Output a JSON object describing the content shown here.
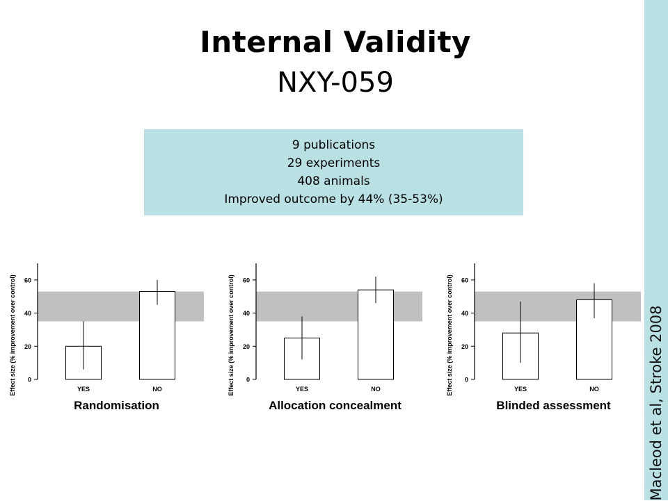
{
  "slide": {
    "title": "Internal Validity",
    "subtitle": "NXY-059",
    "info_lines": [
      "9 publications",
      "29 experiments",
      "408 animals",
      "Improved outcome by 44% (35-53%)"
    ],
    "citation": "Macleod et al, Stroke 2008"
  },
  "colors": {
    "sidebar": "#b9e0e3",
    "info_box": "#b9e0e3",
    "band": "#c0c0c0"
  },
  "chart_data": [
    {
      "type": "bar",
      "xlabel": "Randomisation",
      "ylabel": "Effect size (% improvement over control)",
      "categories": [
        "YES",
        "NO"
      ],
      "values": [
        20,
        53
      ],
      "error_low": [
        6,
        45
      ],
      "error_high": [
        35,
        60
      ],
      "band": [
        35,
        53
      ],
      "ylim": [
        0,
        70
      ],
      "yticks": [
        0,
        20,
        40,
        60
      ]
    },
    {
      "type": "bar",
      "xlabel": "Allocation concealment",
      "ylabel": "Effect size (% improvement over control)",
      "categories": [
        "YES",
        "NO"
      ],
      "values": [
        25,
        54
      ],
      "error_low": [
        12,
        46
      ],
      "error_high": [
        38,
        62
      ],
      "band": [
        35,
        53
      ],
      "ylim": [
        0,
        70
      ],
      "yticks": [
        0,
        20,
        40,
        60
      ]
    },
    {
      "type": "bar",
      "xlabel": "Blinded assessment",
      "ylabel": "Effect size (% improvement over control)",
      "categories": [
        "YES",
        "NO"
      ],
      "values": [
        28,
        48
      ],
      "error_low": [
        10,
        37
      ],
      "error_high": [
        47,
        58
      ],
      "band": [
        35,
        53
      ],
      "ylim": [
        0,
        70
      ],
      "yticks": [
        0,
        20,
        40,
        60
      ]
    }
  ]
}
